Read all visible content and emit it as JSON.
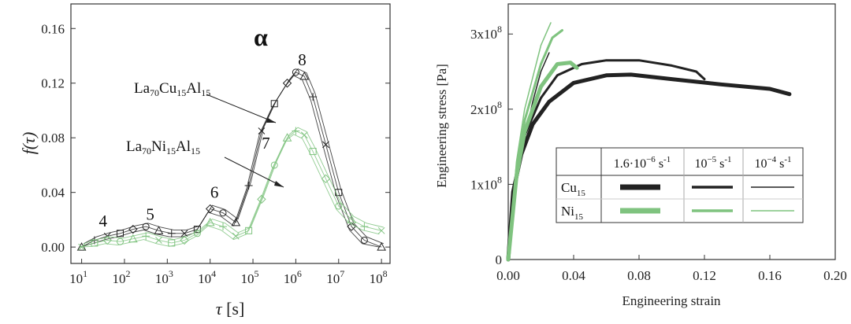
{
  "colors": {
    "cu": "#222222",
    "ni": "#7fc37f",
    "frame": "#333333"
  },
  "chart_data": [
    {
      "type": "line",
      "title": "α",
      "ylabel_italic": "f(τ)",
      "ylabel": "f(τ)",
      "xlabel_sym": "τ",
      "xlabel_unit": "[s]",
      "xscale": "log",
      "xlim_exp": [
        0.75,
        8.2
      ],
      "ylim": [
        -0.012,
        0.178
      ],
      "xtick_exps": [
        "1",
        "2",
        "3",
        "4",
        "5",
        "6",
        "7",
        "8"
      ],
      "ytick_values": [
        0.0,
        0.04,
        0.08,
        0.12,
        0.16
      ],
      "ytick_labels": [
        "0.00",
        "0.04",
        "0.08",
        "0.12",
        "0.16"
      ],
      "peak_labels": [
        {
          "label": "4",
          "x_exp": 1.5,
          "y": 0.015
        },
        {
          "label": "5",
          "x_exp": 2.6,
          "y": 0.02
        },
        {
          "label": "6",
          "x_exp": 4.1,
          "y": 0.036
        },
        {
          "label": "7",
          "x_exp": 5.3,
          "y": 0.072
        },
        {
          "label": "8",
          "x_exp": 6.15,
          "y": 0.133
        }
      ],
      "series": [
        {
          "name": "La70Cu15Al15",
          "label_parts": [
            "La",
            "70",
            "Cu",
            "15",
            "Al",
            "15"
          ],
          "color": "#222222",
          "x_exp": [
            1.0,
            1.3,
            1.6,
            1.9,
            2.2,
            2.5,
            2.8,
            3.1,
            3.4,
            3.7,
            4.0,
            4.3,
            4.6,
            4.9,
            5.2,
            5.5,
            5.8,
            6.0,
            6.2,
            6.4,
            6.7,
            7.0,
            7.3,
            7.6,
            8.0
          ],
          "y": [
            0.0,
            0.005,
            0.008,
            0.01,
            0.013,
            0.015,
            0.012,
            0.01,
            0.01,
            0.013,
            0.028,
            0.025,
            0.018,
            0.045,
            0.085,
            0.105,
            0.12,
            0.128,
            0.125,
            0.11,
            0.075,
            0.04,
            0.015,
            0.005,
            0.0
          ]
        },
        {
          "name": "La70Ni15Al15",
          "label_parts": [
            "La",
            "70",
            "Ni",
            "15",
            "Al",
            "15"
          ],
          "color": "#7fc37f",
          "x_exp": [
            1.0,
            1.3,
            1.6,
            1.9,
            2.2,
            2.5,
            2.8,
            3.1,
            3.4,
            3.7,
            4.0,
            4.3,
            4.6,
            4.9,
            5.2,
            5.5,
            5.8,
            6.0,
            6.2,
            6.4,
            6.7,
            7.0,
            7.3,
            7.6,
            8.0
          ],
          "y": [
            0.0,
            0.003,
            0.005,
            0.004,
            0.006,
            0.008,
            0.005,
            0.003,
            0.005,
            0.01,
            0.018,
            0.015,
            0.008,
            0.012,
            0.035,
            0.06,
            0.08,
            0.085,
            0.082,
            0.07,
            0.05,
            0.03,
            0.02,
            0.015,
            0.012
          ]
        }
      ]
    },
    {
      "type": "line",
      "ylabel": "Engineering stress [Pa]",
      "xlabel": "Engineering strain",
      "xlim": [
        0,
        0.2
      ],
      "ylim": [
        0,
        3.4
      ],
      "xtick_labels": [
        "0.00",
        "0.04",
        "0.08",
        "0.12",
        "0.16",
        "0.20"
      ],
      "xtick_values": [
        0,
        0.04,
        0.08,
        0.12,
        0.16,
        0.2
      ],
      "ytick_values": [
        0,
        1,
        2,
        3
      ],
      "ytick_labels": [
        "0",
        "1x10",
        "2x10",
        "3x10"
      ],
      "ytick_exps": [
        "",
        "8",
        "8",
        "8"
      ],
      "legend": {
        "position": "lower-right",
        "rates": [
          {
            "mantissa": "1.6·10",
            "exp": "−6",
            "unit": " s",
            "uexp": "-1"
          },
          {
            "mantissa": "10",
            "exp": "−5",
            "unit": " s",
            "uexp": "-1"
          },
          {
            "mantissa": "10",
            "exp": "−4",
            "unit": " s",
            "uexp": "-1"
          }
        ],
        "rows": [
          {
            "el": "Cu",
            "sub": "15",
            "color": "#222222"
          },
          {
            "el": "Ni",
            "sub": "15",
            "color": "#7fc37f"
          }
        ]
      },
      "series": [
        {
          "name": "Cu15 1.6e-6",
          "color": "#222222",
          "width": 5,
          "x": [
            0,
            0.003,
            0.008,
            0.015,
            0.025,
            0.04,
            0.06,
            0.075,
            0.1,
            0.13,
            0.16,
            0.172
          ],
          "y": [
            0,
            0.9,
            1.4,
            1.8,
            2.1,
            2.35,
            2.45,
            2.46,
            2.4,
            2.33,
            2.27,
            2.2
          ]
        },
        {
          "name": "Cu15 1e-5",
          "color": "#222222",
          "width": 3,
          "x": [
            0,
            0.005,
            0.01,
            0.02,
            0.03,
            0.045,
            0.06,
            0.08,
            0.1,
            0.115,
            0.12
          ],
          "y": [
            0,
            1.1,
            1.65,
            2.15,
            2.45,
            2.6,
            2.65,
            2.65,
            2.58,
            2.5,
            2.4
          ]
        },
        {
          "name": "Cu15 1e-4",
          "color": "#222222",
          "width": 1.5,
          "x": [
            0,
            0.005,
            0.01,
            0.015,
            0.02,
            0.025
          ],
          "y": [
            0,
            1.0,
            1.6,
            2.1,
            2.5,
            2.75
          ]
        },
        {
          "name": "Ni15 1.6e-6",
          "color": "#7fc37f",
          "width": 5,
          "x": [
            0,
            0.005,
            0.01,
            0.02,
            0.03,
            0.038,
            0.042
          ],
          "y": [
            0,
            1.1,
            1.7,
            2.3,
            2.6,
            2.62,
            2.55
          ]
        },
        {
          "name": "Ni15 1e-5",
          "color": "#7fc37f",
          "width": 3,
          "x": [
            0,
            0.005,
            0.01,
            0.02,
            0.027,
            0.033
          ],
          "y": [
            0,
            1.2,
            1.85,
            2.6,
            2.95,
            3.05
          ]
        },
        {
          "name": "Ni15 1e-4",
          "color": "#7fc37f",
          "width": 1.5,
          "x": [
            0,
            0.005,
            0.01,
            0.02,
            0.026
          ],
          "y": [
            0,
            1.3,
            2.0,
            2.85,
            3.15
          ]
        }
      ]
    }
  ]
}
